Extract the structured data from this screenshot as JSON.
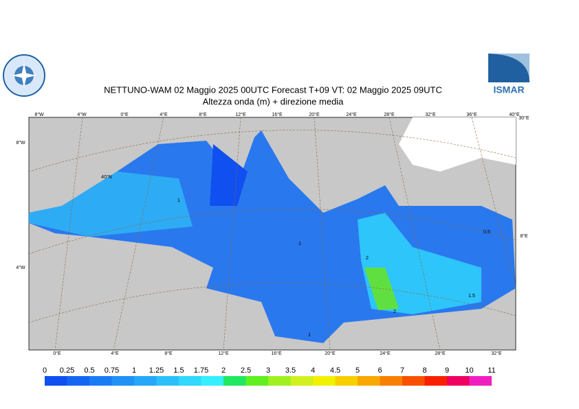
{
  "header": {
    "title": "NETTUNO-WAM  02   Maggio  2025 00UTC Forecast T+09 VT: 02   Maggio  2025 09UTC",
    "subtitle": "Altezza onda (m) + direzione media",
    "logo_right": "ISMAR"
  },
  "map": {
    "top_labels": [
      "8°W",
      "4°W",
      "0°E",
      "4°E",
      "8°E",
      "12°E",
      "16°E",
      "20°E",
      "24°E",
      "28°E",
      "32°E",
      "36°E",
      "40°E",
      "30°E"
    ],
    "bottom_labels": [
      "0°E",
      "4°E",
      "8°E",
      "12°E",
      "16°E",
      "20°E",
      "24°E",
      "28°E",
      "32°E"
    ],
    "side_labels": [
      "8°W",
      "4°W",
      "40°N",
      "8°E"
    ],
    "contour_labels": [
      "1",
      "1",
      "0.5",
      "1.5",
      "2",
      "1",
      "2"
    ]
  },
  "colorbar": {
    "labels": [
      "0",
      "0.25",
      "0.5",
      "0.75",
      "1",
      "1.25",
      "1.5",
      "1.75",
      "2",
      "2.5",
      "3",
      "3.5",
      "4",
      "4.5",
      "5",
      "6",
      "7",
      "8",
      "9",
      "10",
      "11"
    ],
    "colors": [
      "#1050f0",
      "#1466f2",
      "#1a7cf4",
      "#2092f6",
      "#26a8f8",
      "#2cc0fa",
      "#30d8fc",
      "#34f0fe",
      "#20e860",
      "#60f020",
      "#a0f020",
      "#d0f020",
      "#f0f000",
      "#f8d000",
      "#f8a800",
      "#f88000",
      "#f85000",
      "#f82000",
      "#f00060",
      "#f020c0"
    ]
  }
}
